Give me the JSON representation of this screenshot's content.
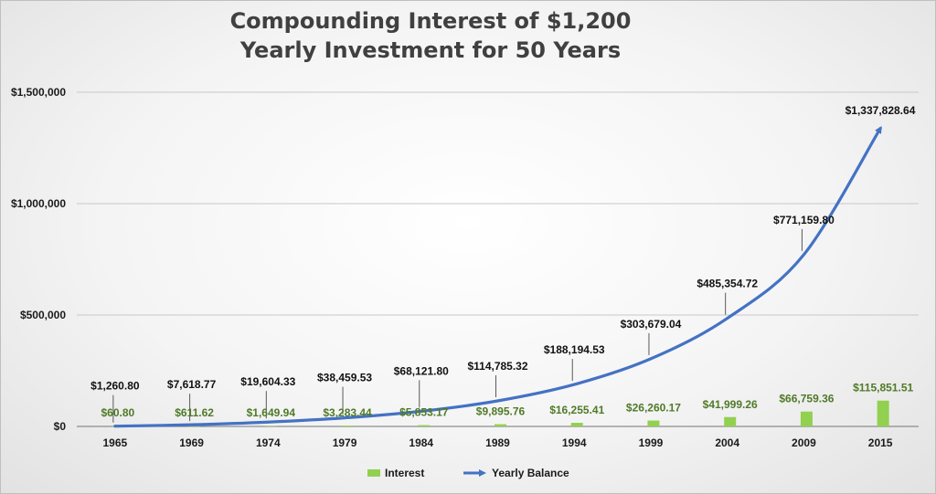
{
  "chart_data": {
    "type": "bar",
    "title_lines": [
      "Compounding Interest of $1,200",
      "Yearly Investment for 50 Years"
    ],
    "categories": [
      "1965",
      "1969",
      "1974",
      "1979",
      "1984",
      "1989",
      "1994",
      "1999",
      "2004",
      "2009",
      "2015"
    ],
    "series": [
      {
        "name": "Interest",
        "type": "bar",
        "color": "#92d050",
        "values": [
          60.8,
          611.62,
          1649.94,
          3283.44,
          5853.17,
          9895.76,
          16255.41,
          26260.17,
          41999.26,
          66759.36,
          115851.51
        ],
        "labels": [
          "$60.80",
          "$611.62",
          "$1,649.94",
          "$3,283.44",
          "$5,853.17",
          "$9,895.76",
          "$16,255.41",
          "$26,260.17",
          "$41,999.26",
          "$66,759.36",
          "$115,851.51"
        ]
      },
      {
        "name": "Yearly Balance",
        "type": "line",
        "color": "#4472c4",
        "values": [
          1260.8,
          7618.77,
          19604.33,
          38459.53,
          68121.8,
          114785.32,
          188194.53,
          303679.04,
          485354.72,
          771159.8,
          1337828.64
        ],
        "labels": [
          "$1,260.80",
          "$7,618.77",
          "$19,604.33",
          "$38,459.53",
          "$68,121.80",
          "$114,785.32",
          "$188,194.53",
          "$303,679.04",
          "$485,354.72",
          "$771,159.80",
          "$1,337,828.64"
        ]
      }
    ],
    "ylim": [
      0,
      1500000
    ],
    "yticks": [
      0,
      500000,
      1000000,
      1500000
    ],
    "ytick_labels": [
      "$0",
      "$500,000",
      "$1,000,000",
      "$1,500,000"
    ],
    "legend": {
      "position": "bottom"
    },
    "grid": true
  }
}
